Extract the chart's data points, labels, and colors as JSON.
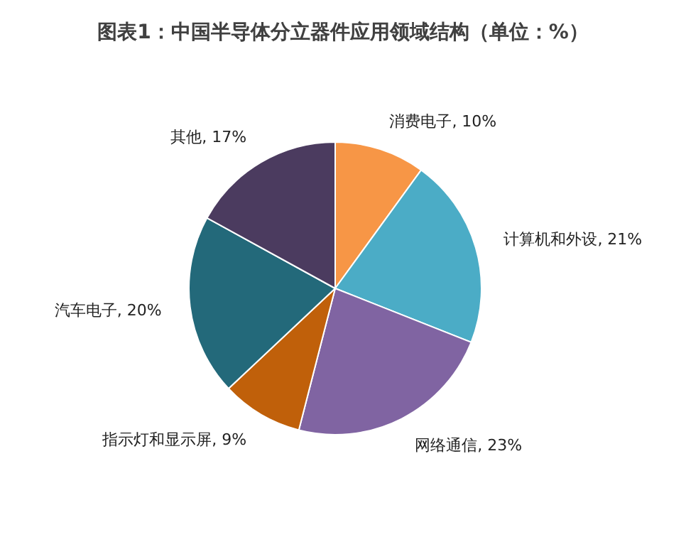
{
  "chart_data": {
    "type": "pie",
    "title": "图表1：中国半导体分立器件应用领域结构（单位：%）",
    "categories": [
      "消费电子",
      "计算机和外设",
      "网络通信",
      "指示灯和显示屏",
      "汽车电子",
      "其他"
    ],
    "values": [
      10,
      21,
      23,
      9,
      20,
      17
    ],
    "value_labels": [
      "10%",
      "21%",
      "23%",
      "9%",
      "20%",
      "17%"
    ],
    "colors": [
      "#f79646",
      "#4bacc6",
      "#8064a2",
      "#c0600a",
      "#23697a",
      "#4b3b5f"
    ]
  }
}
